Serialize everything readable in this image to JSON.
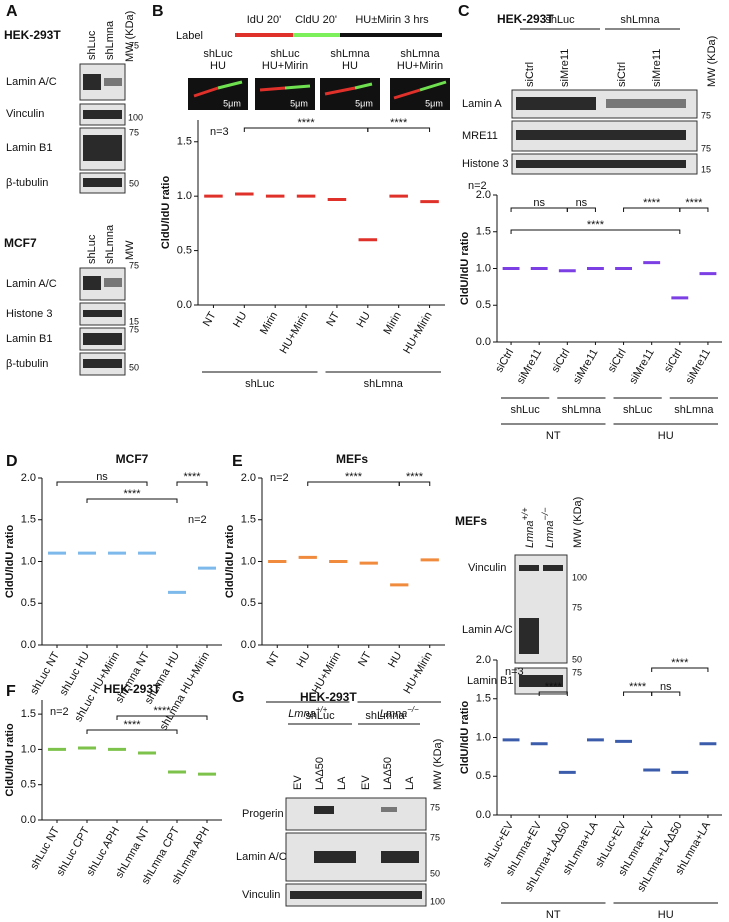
{
  "blots": {
    "A": {
      "letter": "A",
      "cell_line_1": "HEK-293T",
      "lanes_1": [
        "shLuc",
        "shLmna"
      ],
      "mw_1": "MW (KDa)",
      "bands_1": [
        "Lamin A/C",
        "Vinculin",
        "Lamin B1",
        "β-tubulin"
      ],
      "markers_1": [
        75,
        100,
        75,
        50
      ],
      "cell_line_2": "MCF7",
      "lanes_2": [
        "shLuc",
        "shLmna"
      ],
      "mw_2": "MW",
      "bands_2": [
        "Lamin A/C",
        "Histone 3",
        "Lamin B1",
        "β-tubulin"
      ],
      "markers_2": [
        75,
        15,
        75,
        50
      ]
    },
    "C": {
      "letter": "C",
      "cell_line": "HEK-293T",
      "groups": [
        "shLuc",
        "shLmna"
      ],
      "lanes": [
        "siCtrl",
        "siMre11",
        "siCtrl",
        "siMre11"
      ],
      "mw": "MW (KDa)",
      "bands": [
        "Lamin A",
        "MRE11",
        "Histone 3"
      ],
      "markers": [
        75,
        75,
        15
      ]
    },
    "E": {
      "title": "MEFs",
      "lanes": [
        {
          "base": "Lmna",
          "sup": "+/+"
        },
        {
          "base": "Lmna",
          "sup": "−/−"
        }
      ],
      "mw": "MW (KDa)",
      "bands": [
        "Vinculin",
        "Lamin A/C",
        "Lamin B1"
      ],
      "markers": [
        100,
        75,
        50,
        75
      ]
    },
    "G": {
      "letter": "G",
      "cell_line": "HEK-293T",
      "groups": [
        "shLuc",
        "shLmna"
      ],
      "lanes": [
        "EV",
        "LAΔ50",
        "LA",
        "EV",
        "LAΔ50",
        "LA"
      ],
      "mw": "MW (KDa)",
      "bands": [
        "Progerin",
        "Lamin A/C",
        "Vinculin"
      ],
      "markers": [
        75,
        75,
        50,
        100
      ]
    }
  },
  "schematic": {
    "letter": "B",
    "label": "Label",
    "steps": [
      "IdU 20'",
      "CldU 20'",
      "HU±Mirin 3 hrs"
    ],
    "images": [
      [
        "shLuc",
        "HU"
      ],
      [
        "shLuc",
        "HU+Mirin"
      ],
      [
        "shLmna",
        "HU"
      ],
      [
        "shLmna",
        "HU+Mirin"
      ]
    ],
    "scale_bars": [
      "5μm",
      "5μm",
      "5μm",
      "5μm"
    ]
  },
  "chart_data": [
    {
      "type": "dot",
      "n_label": "n=3",
      "ylabel": "CldU/IdU ratio",
      "ylim": [
        0,
        1.7
      ],
      "yticks": [
        {
          "value": 0,
          "label": "0.0"
        },
        0.5,
        {
          "value": 1,
          "label": "1.0"
        },
        1.5
      ],
      "categories": [
        "NT",
        "HU",
        "Mirin",
        "HU+Mirin",
        "NT",
        "HU",
        "Mirin",
        "HU+Mirin"
      ],
      "groups": [
        "shLuc",
        "shLmna"
      ],
      "values": [
        1.0,
        1.02,
        1.0,
        1.0,
        0.97,
        0.6,
        1.0,
        0.95
      ],
      "color": "#e0302a",
      "annotations": [
        "****",
        "****"
      ]
    },
    {
      "type": "dot",
      "n_label": "n=2",
      "ylabel": "CldU/IdU ratio",
      "ylim": [
        0,
        2
      ],
      "yticks": [
        {
          "value": 0,
          "label": "0.0"
        },
        0.5,
        {
          "value": 1,
          "label": "1.0"
        },
        1.5,
        {
          "value": 2,
          "label": "2.0"
        }
      ],
      "categories": [
        "siCtrl",
        "siMre11",
        "siCtrl",
        "siMre11",
        "siCtrl",
        "siMre11",
        "siCtrl",
        "siMre11"
      ],
      "groups": [
        "shLuc",
        "shLmna",
        "shLuc",
        "shLmna"
      ],
      "outer_groups": [
        "NT",
        "HU"
      ],
      "values": [
        1.0,
        1.0,
        0.97,
        1.0,
        1.0,
        1.08,
        0.6,
        0.93
      ],
      "color": "#7b3fe4",
      "annotations": [
        "ns",
        "ns",
        "****",
        "****",
        "****"
      ]
    },
    {
      "type": "dot",
      "letter": "D",
      "title": "MCF7",
      "n_label": "n=2",
      "ylabel": "CldU/IdU ratio",
      "ylim": [
        0,
        2
      ],
      "yticks": [
        {
          "value": 0,
          "label": "0.0"
        },
        0.5,
        {
          "value": 1,
          "label": "1.0"
        },
        1.5,
        {
          "value": 2,
          "label": "2.0"
        }
      ],
      "categories": [
        "shLuc NT",
        "shLuc HU",
        "shLuc HU+Mirin",
        "shLmna NT",
        "shLmna HU",
        "shLmna HU+Mirin"
      ],
      "values": [
        1.1,
        1.1,
        1.1,
        1.1,
        0.63,
        0.92
      ],
      "color": "#7db9ea",
      "annotations": [
        "ns",
        "****",
        "****"
      ]
    },
    {
      "type": "dot",
      "letter": "E",
      "title": "MEFs",
      "n_label": "n=2",
      "ylabel": "CldU/IdU ratio",
      "ylim": [
        0,
        2
      ],
      "yticks": [
        {
          "value": 0,
          "label": "0.0"
        },
        0.5,
        {
          "value": 1,
          "label": "1.0"
        },
        1.5,
        {
          "value": 2,
          "label": "2.0"
        }
      ],
      "categories": [
        "NT",
        "HU",
        "HU+Mirin",
        "NT",
        "HU",
        "HU+Mirin"
      ],
      "groups": [
        {
          "base": "Lmna",
          "sup": "+/+"
        },
        {
          "base": "Lmna",
          "sup": "−/−"
        }
      ],
      "values": [
        1.0,
        1.05,
        1.0,
        0.98,
        0.72,
        1.02
      ],
      "color": "#f08a3c",
      "annotations": [
        "****",
        "****"
      ]
    },
    {
      "type": "dot",
      "letter": "F",
      "title": "HEK-293T",
      "n_label": "n=2",
      "ylabel": "CldU/IdU ratio",
      "ylim": [
        0,
        1.7
      ],
      "yticks": [
        {
          "value": 0,
          "label": "0.0"
        },
        0.5,
        {
          "value": 1,
          "label": "1.0"
        },
        1.5
      ],
      "categories": [
        "shLuc NT",
        "shLuc CPT",
        "shLuc APH",
        "shLmna NT",
        "shLmna CPT",
        "shLmna APH"
      ],
      "values": [
        1.0,
        1.02,
        1.0,
        0.95,
        0.68,
        0.65
      ],
      "color": "#7dc24b",
      "annotations": [
        "****",
        "****"
      ]
    },
    {
      "type": "dot",
      "n_label": "n=3",
      "ylabel": "CldU/IdU ratio",
      "ylim": [
        0,
        2
      ],
      "yticks": [
        {
          "value": 0,
          "label": "0.0"
        },
        0.5,
        {
          "value": 1,
          "label": "1.0"
        },
        1.5,
        {
          "value": 2,
          "label": "2.0"
        }
      ],
      "categories": [
        "shLuc+EV",
        "shLmna+EV",
        "shLmna+LAΔ50",
        "shLmna+LA",
        "shLuc+EV",
        "shLmna+EV",
        "shLmna+LAΔ50",
        "shLmna+LA"
      ],
      "outer_groups": [
        "NT",
        "HU"
      ],
      "values": [
        0.97,
        0.92,
        0.55,
        0.97,
        0.95,
        0.58,
        0.55,
        0.92
      ],
      "color": "#3b5bab",
      "annotations": [
        "****",
        "****",
        "ns",
        "****"
      ]
    }
  ]
}
